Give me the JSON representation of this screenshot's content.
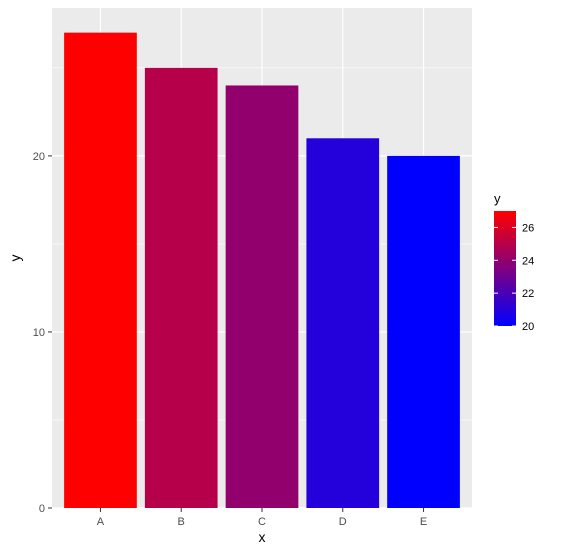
{
  "chart_data": {
    "type": "bar",
    "categories": [
      "A",
      "B",
      "C",
      "D",
      "E"
    ],
    "values": [
      27,
      25,
      24,
      21,
      20
    ],
    "xlabel": "x",
    "ylabel": "y",
    "ylim": [
      0,
      28.4
    ],
    "y_ticks": [
      0,
      10,
      20
    ],
    "grid": true,
    "panel_background": "#ebebeb",
    "grid_color": "#ffffff",
    "legend": {
      "title": "y",
      "placement": "right",
      "min": 20,
      "max": 27,
      "ticks": [
        20,
        22,
        24,
        26
      ],
      "low_color": "#0000ff",
      "high_color": "#ff0000"
    }
  }
}
